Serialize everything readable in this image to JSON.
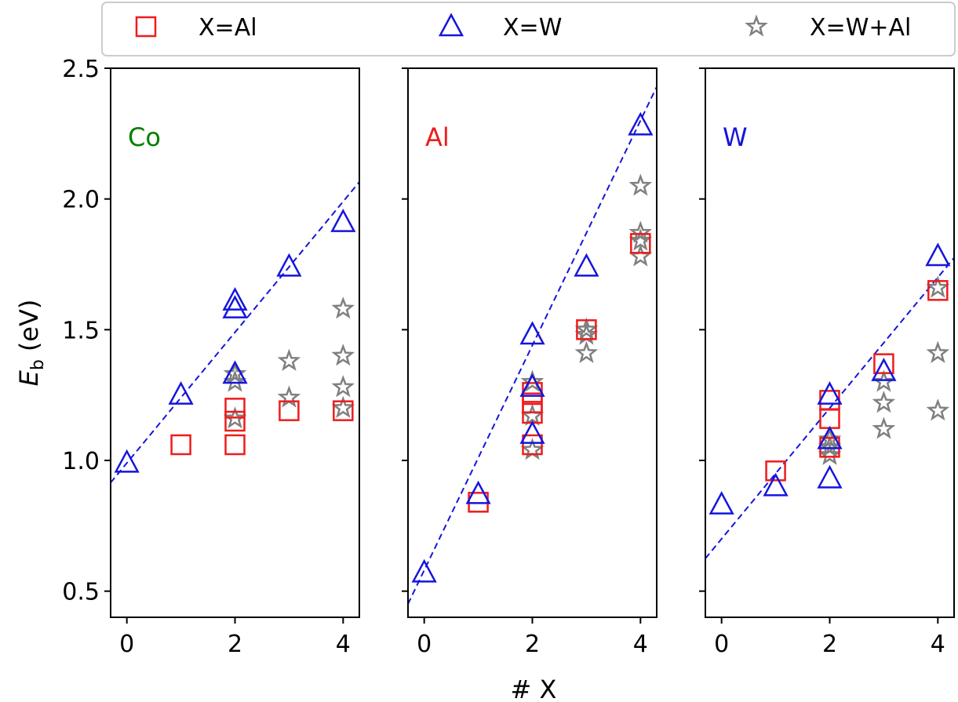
{
  "legend": {
    "location": "top",
    "entries": [
      {
        "label": "X=Al",
        "marker": "square",
        "color": "#ee1c1c"
      },
      {
        "label": "X=W",
        "marker": "triangle",
        "color": "#1515dd"
      },
      {
        "label": "X=W+Al",
        "marker": "star",
        "color": "#808080"
      }
    ]
  },
  "axes": {
    "ylabel_main": "E",
    "ylabel_sub": "b",
    "ylabel_unit": "(eV)",
    "xlabel": "# X"
  },
  "chart_data": {
    "type": "scatter",
    "shared_y": true,
    "ylim": [
      0.4,
      2.5
    ],
    "yticks": [
      0.5,
      1.0,
      1.5,
      2.0,
      2.5
    ],
    "ytick_labels": [
      "0.5",
      "1.0",
      "1.5",
      "2.0",
      "2.5"
    ],
    "xlim": [
      -0.3,
      4.3
    ],
    "xticks": [
      0,
      2,
      4
    ],
    "xtick_labels": [
      "0",
      "2",
      "4"
    ],
    "grid": false,
    "panels": [
      {
        "title": "Co",
        "title_color": "#008000",
        "fit_line": {
          "slope": 0.25,
          "intercept": 0.99,
          "color": "#1515dd",
          "style": "dashed"
        },
        "series": [
          {
            "name": "X=Al",
            "marker": "square",
            "color": "#ee1c1c",
            "x": [
              1,
              2,
              2,
              2,
              3,
              4
            ],
            "y": [
              1.06,
              1.06,
              1.15,
              1.2,
              1.19,
              1.19
            ]
          },
          {
            "name": "X=W",
            "marker": "triangle",
            "color": "#1515dd",
            "x": [
              0,
              1,
              2,
              2,
              2,
              3,
              4
            ],
            "y": [
              0.99,
              1.25,
              1.58,
              1.61,
              1.33,
              1.74,
              1.91
            ]
          },
          {
            "name": "X=W+Al",
            "marker": "star",
            "color": "#808080",
            "x": [
              2,
              2,
              2,
              3,
              3,
              4,
              4,
              4,
              4
            ],
            "y": [
              1.3,
              1.33,
              1.16,
              1.38,
              1.24,
              1.58,
              1.4,
              1.28,
              1.2
            ]
          }
        ]
      },
      {
        "title": "Al",
        "title_color": "#ee1c1c",
        "fit_line": {
          "slope": 0.43,
          "intercept": 0.58,
          "color": "#1515dd",
          "style": "dashed"
        },
        "series": [
          {
            "name": "X=Al",
            "marker": "square",
            "color": "#ee1c1c",
            "x": [
              1,
              2,
              2,
              2,
              2,
              3,
              4
            ],
            "y": [
              0.84,
              1.06,
              1.18,
              1.22,
              1.26,
              1.5,
              1.83
            ]
          },
          {
            "name": "X=W",
            "marker": "triangle",
            "color": "#1515dd",
            "x": [
              0,
              1,
              2,
              2,
              2,
              3,
              4
            ],
            "y": [
              0.57,
              0.87,
              1.48,
              1.28,
              1.1,
              1.74,
              2.28
            ]
          },
          {
            "name": "X=W+Al",
            "marker": "star",
            "color": "#808080",
            "x": [
              2,
              2,
              2,
              3,
              3,
              3,
              4,
              4,
              4,
              4
            ],
            "y": [
              1.3,
              1.17,
              1.04,
              1.5,
              1.48,
              1.41,
              2.05,
              1.87,
              1.84,
              1.78
            ]
          }
        ]
      },
      {
        "title": "W",
        "title_color": "#1515dd",
        "fit_line": {
          "slope": 0.25,
          "intercept": 0.7,
          "color": "#1515dd",
          "style": "dashed"
        },
        "series": [
          {
            "name": "X=Al",
            "marker": "square",
            "color": "#ee1c1c",
            "x": [
              1,
              2,
              2,
              2,
              3,
              4
            ],
            "y": [
              0.96,
              1.05,
              1.16,
              1.23,
              1.37,
              1.65
            ]
          },
          {
            "name": "X=W",
            "marker": "triangle",
            "color": "#1515dd",
            "x": [
              0,
              1,
              2,
              2,
              2,
              3,
              4
            ],
            "y": [
              0.83,
              0.9,
              0.93,
              1.08,
              1.25,
              1.34,
              1.78
            ]
          },
          {
            "name": "X=W+Al",
            "marker": "star",
            "color": "#808080",
            "x": [
              2,
              2,
              2,
              3,
              3,
              3,
              4,
              4,
              4
            ],
            "y": [
              1.08,
              1.05,
              1.02,
              1.3,
              1.22,
              1.12,
              1.66,
              1.41,
              1.19
            ]
          }
        ]
      }
    ]
  }
}
